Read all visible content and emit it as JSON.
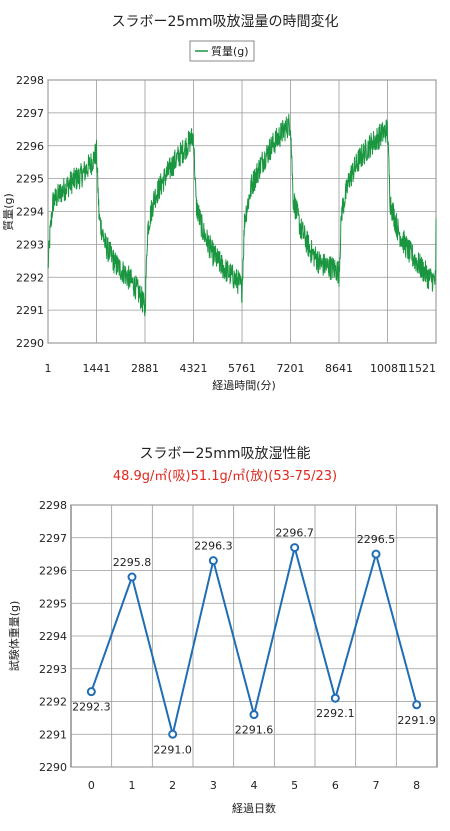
{
  "chart_data": [
    {
      "type": "line",
      "title": "スラボー25mm吸放湿量の時間変化",
      "xlabel": "経過時間(分)",
      "ylabel": "質量(g)",
      "legend": {
        "entries": [
          "質量(g)"
        ],
        "placement": "top-center"
      },
      "x_ticks": [
        "1",
        "1441",
        "2881",
        "4321",
        "5761",
        "7201",
        "8641",
        "10081",
        "11521"
      ],
      "xlim": [
        1,
        11521
      ],
      "y_ticks": [
        "2290",
        "2291",
        "2292",
        "2293",
        "2294",
        "2295",
        "2296",
        "2297",
        "2298"
      ],
      "ylim": [
        2290,
        2298
      ],
      "grid": true,
      "series": [
        {
          "name": "質量(g)",
          "color": "#1a9641",
          "x": [
            1,
            60,
            150,
            400,
            700,
            1000,
            1300,
            1441,
            1520,
            1700,
            2000,
            2300,
            2600,
            2800,
            2881,
            2960,
            3150,
            3450,
            3750,
            4050,
            4321,
            4400,
            4600,
            4900,
            5200,
            5500,
            5700,
            5761,
            5840,
            6050,
            6350,
            6650,
            6950,
            7201,
            7280,
            7500,
            7800,
            8100,
            8400,
            8600,
            8641,
            8720,
            8950,
            9250,
            9550,
            9850,
            10081,
            10160,
            10400,
            10700,
            11000,
            11300,
            11480,
            11521,
            11600
          ],
          "values": [
            2292.3,
            2293.3,
            2294.3,
            2294.6,
            2294.9,
            2295.1,
            2295.5,
            2295.8,
            2293.8,
            2293.0,
            2292.4,
            2292.1,
            2291.7,
            2291.3,
            2291.0,
            2293.5,
            2294.4,
            2295.0,
            2295.5,
            2295.9,
            2296.3,
            2294.2,
            2293.4,
            2292.7,
            2292.3,
            2292.0,
            2291.8,
            2291.6,
            2293.8,
            2294.8,
            2295.5,
            2296.0,
            2296.4,
            2296.7,
            2294.4,
            2293.5,
            2292.8,
            2292.4,
            2292.3,
            2292.2,
            2292.1,
            2294.0,
            2295.0,
            2295.6,
            2296.0,
            2296.3,
            2296.5,
            2294.3,
            2293.4,
            2292.8,
            2292.4,
            2292.0,
            2291.9,
            2291.9,
            2293.8
          ]
        }
      ]
    },
    {
      "type": "line",
      "title": "スラボー25mm吸放湿性能",
      "subtitle": "48.9g/㎡(吸)51.1g/㎡(放)(53-75/23)",
      "xlabel": "経過日数",
      "ylabel": "試験体重量(g)",
      "categories": [
        "0",
        "1",
        "2",
        "3",
        "4",
        "5",
        "6",
        "7",
        "8"
      ],
      "y_ticks": [
        "2290",
        "2291",
        "2292",
        "2293",
        "2294",
        "2295",
        "2296",
        "2297",
        "2298"
      ],
      "ylim": [
        2290,
        2298
      ],
      "grid": true,
      "series": [
        {
          "color": "#1f6db5",
          "values": [
            2292.3,
            2295.8,
            2291.0,
            2296.3,
            2291.6,
            2296.7,
            2292.1,
            2296.5,
            2291.9
          ],
          "labels": [
            "2292.3",
            "2295.8",
            "2291.0",
            "2296.3",
            "2291.6",
            "2296.7",
            "2292.1",
            "2296.5",
            "2291.9"
          ]
        }
      ]
    }
  ]
}
